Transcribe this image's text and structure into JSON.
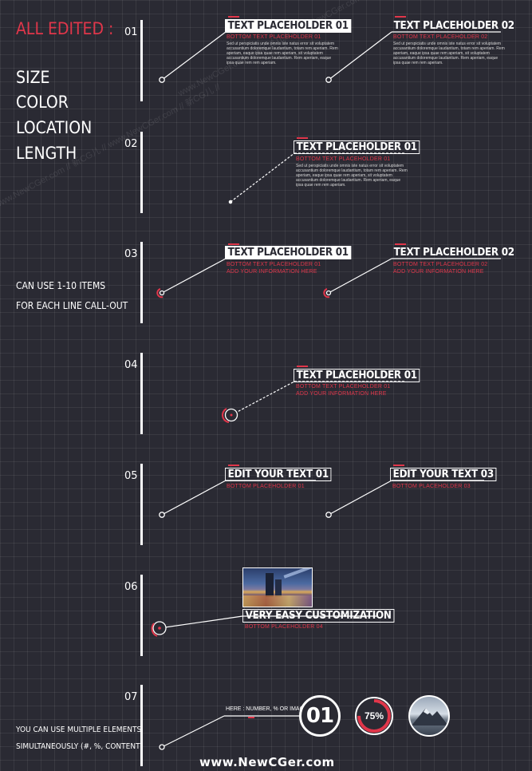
{
  "left_panel": {
    "title": "ALL EDITED :",
    "features": [
      "SIZE",
      "COLOR",
      "LOCATION",
      "LENGTH"
    ],
    "items_note_line1": "CAN USE 1-10 ITEMS",
    "items_note_line2": "FOR EACH LINE CALL-OUT",
    "multi_note_line1": "YOU CAN USE MULTIPLE ELEMENTS",
    "multi_note_line2": "SIMULTANEOUSLY (#, %, CONTENT)"
  },
  "sections": {
    "s1": {
      "number": "01",
      "c1": {
        "title": "TEXT PLACEHOLDER 01",
        "subtitle": "BOTTOM TEXT PLACEHOLDER 01"
      },
      "c2": {
        "title": "TEXT PLACEHOLDER 02",
        "subtitle": "BOTTOM TEXT PLACEHOLDER 02"
      },
      "body": "Sed ut perspiciatis unde omnis iste natus error sit voluptatem accusantium doloremque laudantium, totam rem aperiam. Rem aperiam, eaque ipsa quae rem aperiam, sit voluptatem accusantium doloremque laudantium. Rem aperiam, eaque ipsa quae rem  rem aperiam."
    },
    "s2": {
      "number": "02",
      "c1": {
        "title": "TEXT PLACEHOLDER 01",
        "subtitle": "BOTTOM TEXT PLACEHOLDER 01"
      },
      "body": "Sed ut perspiciatis unde omnis iste natus error sit voluptatem accusantium doloremque laudantium, totam rem aperiam. Rem aperiam, eaque ipsa quae rem aperiam, sit voluptatem accusantium doloremque laudantium. Rem aperiam, eaque ipsa quae rem  rem aperiam."
    },
    "s3": {
      "number": "03",
      "c1": {
        "title": "TEXT PLACEHOLDER 01",
        "subtitle": "BOTTOM TEXT PLACEHOLDER 01",
        "info": "ADD YOUR INFORMATION HERE"
      },
      "c2": {
        "title": "TEXT PLACEHOLDER 02",
        "subtitle": "BOTTOM TEXT PLACEHOLDER 02",
        "info": "ADD YOUR INFORMATION HERE"
      }
    },
    "s4": {
      "number": "04",
      "c1": {
        "title": "TEXT PLACEHOLDER 01",
        "subtitle": "BOTTOM TEXT PLACEHOLDER 01",
        "info": "ADD YOUR INFORMATION HERE"
      }
    },
    "s5": {
      "number": "05",
      "c1": {
        "title": "EDIT YOUR TEXT 01",
        "subtitle": "BOTTOM PLACEHOLDER 01"
      },
      "c2": {
        "title": "EDIT YOUR TEXT 03",
        "subtitle": "BOTTOM PLACEHOLDER 03"
      }
    },
    "s6": {
      "number": "06",
      "c1": {
        "title": "VERY EASY CUSTOMIZATION",
        "subtitle": "BOTTOM PLACEHOLDER 04"
      }
    },
    "s7": {
      "number": "07",
      "label": "HERE : NUMBER, % OR IMAGE",
      "number_badge": "01",
      "percent_badge": "75%",
      "percent_value": 0.75
    }
  },
  "footer": {
    "site": "www.NewCGer.com"
  },
  "watermark": {
    "text": "www.NewCGer.com // 新CG儿 // www.NewCGer.com // 新CG儿 //"
  },
  "colors": {
    "accent": "#e0364a",
    "background": "#2a2a33",
    "foreground": "#ffffff"
  },
  "icons": {
    "photo_badge": "mountain-photo-icon"
  }
}
